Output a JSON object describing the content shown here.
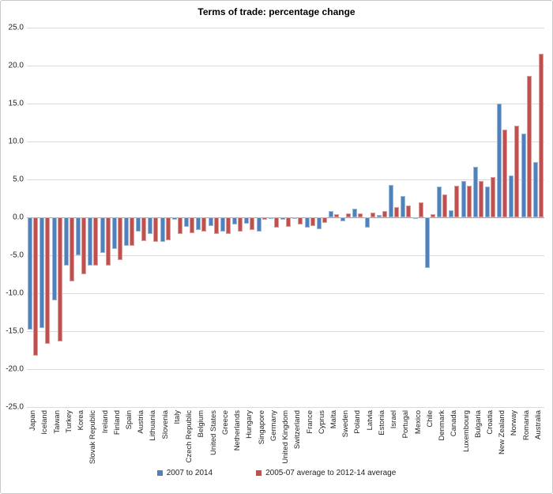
{
  "title": "Terms of trade: percentage change",
  "colors": {
    "series1": "#4F81BD",
    "series2": "#C0504D",
    "gridline": "#D9D9D9",
    "zero_line": "#A6A6A6",
    "text": "#1F1F1F"
  },
  "chart_data": {
    "type": "bar",
    "title": "Terms of trade: percentage change",
    "categories": [
      "Japan",
      "Iceland",
      "Taiwan",
      "Turkey",
      "Korea",
      "Slovak Republic",
      "Ireland",
      "Finland",
      "Spain",
      "Austria",
      "Lithuania",
      "Slovenia",
      "Italy",
      "Czech Republic",
      "Belgium",
      "United States",
      "Greece",
      "Netherlands",
      "Hungary",
      "Singapore",
      "Germany",
      "United Kingdom",
      "Switzerland",
      "France",
      "Cyprus",
      "Malta",
      "Sweden",
      "Poland",
      "Latvia",
      "Estonia",
      "Israel",
      "Portugal",
      "Mexico",
      "Chile",
      "Denmark",
      "Canada",
      "Luxembourg",
      "Bulgaria",
      "Croatia",
      "New Zealand",
      "Norway",
      "Romania",
      "Australia"
    ],
    "series": [
      {
        "name": "2007 to 2014",
        "color": "#4F81BD",
        "values": [
          -14.8,
          -14.6,
          -10.9,
          -6.4,
          -5.0,
          -6.4,
          -4.7,
          -4.2,
          -3.7,
          -1.9,
          -2.2,
          -3.2,
          -0.3,
          -1.2,
          -1.7,
          -1.1,
          -1.9,
          -0.9,
          -0.8,
          -1.9,
          -0.2,
          -0.3,
          -0.1,
          -1.4,
          -1.6,
          0.8,
          -0.5,
          1.1,
          -1.3,
          0.3,
          4.3,
          2.8,
          -0.2,
          -6.7,
          4.1,
          0.9,
          4.8,
          6.7,
          4.1,
          15.0,
          5.5,
          11.0,
          7.3
        ]
      },
      {
        "name": "2005-07 average to 2012-14 average",
        "color": "#C0504D",
        "values": [
          -18.2,
          -16.7,
          -16.3,
          -8.4,
          -7.5,
          -6.3,
          -6.4,
          -5.6,
          -3.7,
          -3.1,
          -3.2,
          -3.0,
          -2.2,
          -2.1,
          -1.9,
          -2.2,
          -2.2,
          -1.9,
          -1.7,
          -0.3,
          -1.4,
          -1.2,
          -0.9,
          -1.1,
          -0.7,
          0.4,
          0.5,
          0.5,
          0.6,
          0.8,
          1.4,
          1.6,
          2.0,
          0.4,
          3.0,
          4.2,
          4.2,
          4.8,
          5.3,
          11.6,
          12.1,
          18.7,
          21.6
        ]
      }
    ],
    "ylim": [
      -25,
      25
    ],
    "ytick_step": 5,
    "ytick_decimals": 1,
    "grid": true,
    "legend_position": "bottom",
    "xlabel": "",
    "ylabel": ""
  }
}
